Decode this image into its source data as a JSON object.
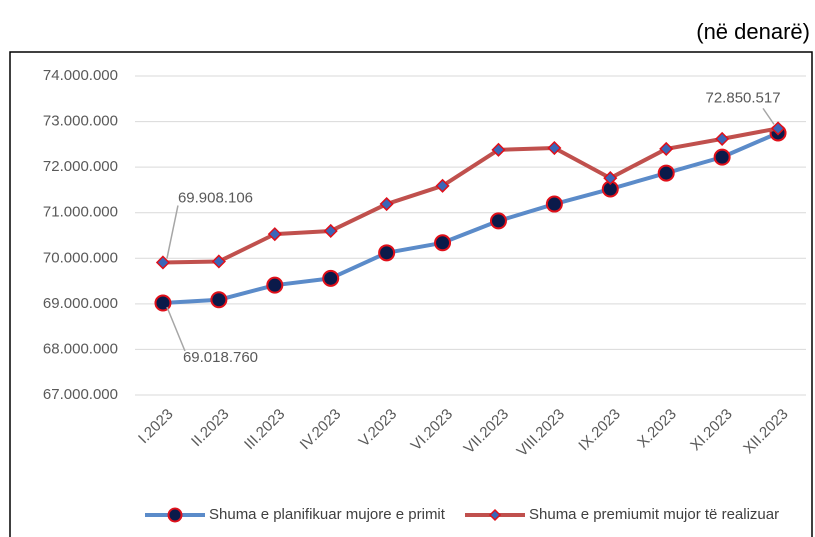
{
  "chart_data": {
    "type": "line",
    "subtitle": "(në denarë)",
    "categories": [
      "I.2023",
      "II.2023",
      "III.2023",
      "IV.2023",
      "V.2023",
      "VI.2023",
      "VII.2023",
      "VIII.2023",
      "IX.2023",
      "X.2023",
      "XI.2023",
      "XII.2023"
    ],
    "series": [
      {
        "name": "Shuma e planifikuar mujore e primit",
        "color": "#5b8bc9",
        "values": [
          69018760,
          69090000,
          69410000,
          69560000,
          70120000,
          70340000,
          70820000,
          71190000,
          71520000,
          71870000,
          72220000,
          72750000
        ],
        "value_labels": [
          "69.018.760",
          null,
          null,
          null,
          null,
          null,
          null,
          null,
          null,
          null,
          null,
          null
        ]
      },
      {
        "name": "Shuma e premiumit mujor të realizuar",
        "color": "#c0504d",
        "values": [
          69908106,
          69930000,
          70530000,
          70600000,
          71190000,
          71590000,
          72380000,
          72420000,
          71760000,
          72400000,
          72620000,
          72850517
        ],
        "value_labels": [
          "69.908.106",
          null,
          null,
          null,
          null,
          null,
          null,
          null,
          null,
          null,
          null,
          "72.850.517"
        ]
      }
    ],
    "ylim": [
      67000000,
      74000000
    ],
    "yticks": [
      {
        "value": 67000000,
        "label": "67.000.000"
      },
      {
        "value": 68000000,
        "label": "68.000.000"
      },
      {
        "value": 69000000,
        "label": "69.000.000"
      },
      {
        "value": 70000000,
        "label": "70.000.000"
      },
      {
        "value": 71000000,
        "label": "71.000.000"
      },
      {
        "value": 72000000,
        "label": "72.000.000"
      },
      {
        "value": 73000000,
        "label": "73.000.000"
      },
      {
        "value": 74000000,
        "label": "74.000.000"
      }
    ],
    "grid": true,
    "legend": "bottom"
  }
}
